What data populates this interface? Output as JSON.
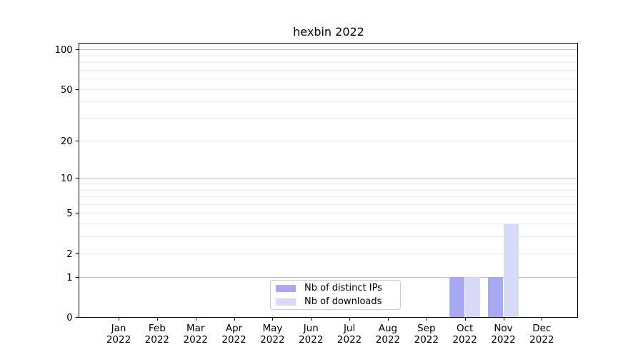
{
  "figure": {
    "background": "#ffffff"
  },
  "chart_data": {
    "type": "bar",
    "title": "hexbin 2022",
    "x_months": [
      "Jan",
      "Feb",
      "Mar",
      "Apr",
      "May",
      "Jun",
      "Jul",
      "Aug",
      "Sep",
      "Oct",
      "Nov",
      "Dec"
    ],
    "x_year": "2022",
    "series": [
      {
        "name": "Nb of distinct IPs",
        "color": "#a8a8f4",
        "values": [
          0,
          0,
          0,
          0,
          0,
          0,
          0,
          0,
          0,
          1,
          1,
          0
        ]
      },
      {
        "name": "Nb of downloads",
        "color": "#d9d9f8",
        "values": [
          0,
          0,
          0,
          0,
          0,
          0,
          0,
          0,
          0,
          1,
          4,
          0
        ]
      }
    ],
    "yscale": "log1p",
    "ylim": [
      0,
      112
    ],
    "yticks": [
      0,
      1,
      2,
      5,
      10,
      20,
      50,
      100
    ],
    "major_gridlines": [
      1,
      10,
      100
    ],
    "minor_gridlines": [
      2,
      3,
      4,
      5,
      6,
      7,
      8,
      9,
      20,
      30,
      40,
      50,
      60,
      70,
      80,
      90
    ],
    "grid": "horizontal",
    "legend_position": "lower center",
    "colors": {
      "axis": "#000000",
      "text": "#000000",
      "major_grid": "#c0c0c0",
      "minor_grid": "#ebebeb",
      "legend_border": "#cccccc"
    }
  }
}
